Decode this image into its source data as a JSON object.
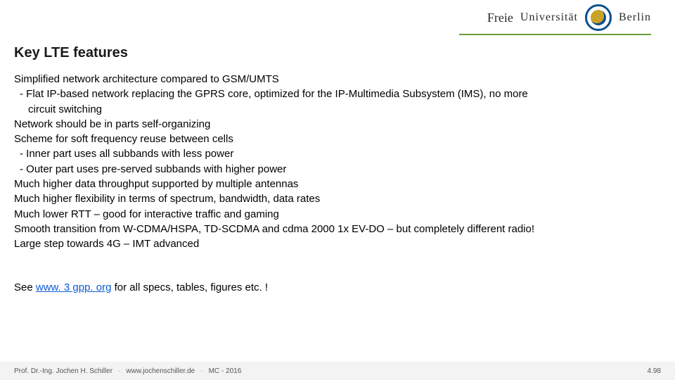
{
  "logo": {
    "script": "Freie",
    "word": "Universität",
    "city": "Berlin"
  },
  "title": "Key LTE features",
  "lines": [
    {
      "text": "Simplified network architecture compared to GSM/UMTS",
      "indent": false
    },
    {
      "text": "- Flat IP-based network replacing the GPRS core, optimized for the IP-Multimedia Subsystem (IMS), no more",
      "indent": true
    },
    {
      "text": "circuit switching",
      "indent": true,
      "extra_indent": true
    },
    {
      "text": "Network should be in parts self-organizing",
      "indent": false
    },
    {
      "text": "Scheme for soft frequency reuse between cells",
      "indent": false
    },
    {
      "text": "- Inner part uses all subbands with less power",
      "indent": true
    },
    {
      "text": "- Outer part uses pre-served subbands with higher power",
      "indent": true
    },
    {
      "text": "Much higher data throughput supported by multiple antennas",
      "indent": false
    },
    {
      "text": "Much higher flexibility in terms of spectrum, bandwidth, data rates",
      "indent": false
    },
    {
      "text": "Much lower RTT – good for interactive traffic and gaming",
      "indent": false
    },
    {
      "text": "Smooth transition from W-CDMA/HSPA, TD-SCDMA and cdma 2000 1x EV-DO – but completely different radio!",
      "indent": false
    },
    {
      "text": "Large step towards 4G – IMT advanced",
      "indent": false
    }
  ],
  "reference": {
    "prefix": "See ",
    "link_text": "www. 3 gpp. org",
    "link_href": "http://www.3gpp.org",
    "suffix": " for all specs, tables, figures etc. !"
  },
  "footer": {
    "author": "Prof. Dr.-Ing. Jochen H. Schiller",
    "site": "www.jochenschiller.de",
    "course": "MC - 2016",
    "page": "4.98"
  },
  "colors": {
    "accent_green": "#6a9b3a",
    "link_blue": "#0b5bd3",
    "footer_bg": "#f3f3f3",
    "seal_blue": "#0a4f8e",
    "seal_gold": "#c9a227"
  }
}
